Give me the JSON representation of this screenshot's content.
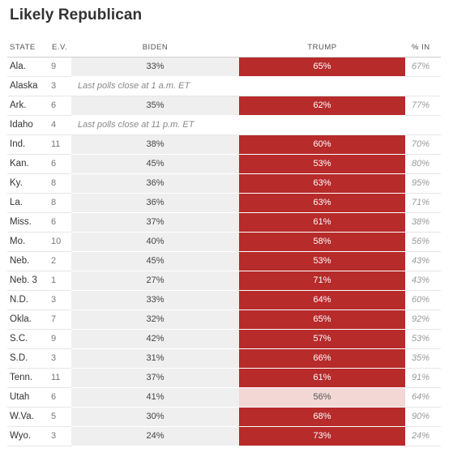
{
  "title": "Likely Republican",
  "headers": {
    "state": "STATE",
    "ev": "E.V.",
    "biden": "BIDEN",
    "trump": "TRUMP",
    "pct_in": "% IN"
  },
  "colors": {
    "trump": "#b72b2b",
    "trump_light": "#f2d7d5",
    "biden": "#efefef"
  },
  "rows": [
    {
      "state": "Ala.",
      "ev": "9",
      "biden": "33%",
      "trump": "65%",
      "pct_in": "67%"
    },
    {
      "state": "Alaska",
      "ev": "3",
      "note": "Last polls close at 1 a.m. ET"
    },
    {
      "state": "Ark.",
      "ev": "6",
      "biden": "35%",
      "trump": "62%",
      "pct_in": "77%"
    },
    {
      "state": "Idaho",
      "ev": "4",
      "note": "Last polls close at 11 p.m. ET"
    },
    {
      "state": "Ind.",
      "ev": "11",
      "biden": "38%",
      "trump": "60%",
      "pct_in": "70%"
    },
    {
      "state": "Kan.",
      "ev": "6",
      "biden": "45%",
      "trump": "53%",
      "pct_in": "80%"
    },
    {
      "state": "Ky.",
      "ev": "8",
      "biden": "36%",
      "trump": "63%",
      "pct_in": "95%"
    },
    {
      "state": "La.",
      "ev": "8",
      "biden": "36%",
      "trump": "63%",
      "pct_in": "71%"
    },
    {
      "state": "Miss.",
      "ev": "6",
      "biden": "37%",
      "trump": "61%",
      "pct_in": "38%"
    },
    {
      "state": "Mo.",
      "ev": "10",
      "biden": "40%",
      "trump": "58%",
      "pct_in": "56%"
    },
    {
      "state": "Neb.",
      "ev": "2",
      "biden": "45%",
      "trump": "53%",
      "pct_in": "43%"
    },
    {
      "state": "Neb. 3",
      "ev": "1",
      "biden": "27%",
      "trump": "71%",
      "pct_in": "43%"
    },
    {
      "state": "N.D.",
      "ev": "3",
      "biden": "33%",
      "trump": "64%",
      "pct_in": "60%"
    },
    {
      "state": "Okla.",
      "ev": "7",
      "biden": "32%",
      "trump": "65%",
      "pct_in": "92%"
    },
    {
      "state": "S.C.",
      "ev": "9",
      "biden": "42%",
      "trump": "57%",
      "pct_in": "53%"
    },
    {
      "state": "S.D.",
      "ev": "3",
      "biden": "31%",
      "trump": "66%",
      "pct_in": "35%"
    },
    {
      "state": "Tenn.",
      "ev": "11",
      "biden": "37%",
      "trump": "61%",
      "pct_in": "91%"
    },
    {
      "state": "Utah",
      "ev": "6",
      "biden": "41%",
      "trump": "56%",
      "pct_in": "64%",
      "lean": true
    },
    {
      "state": "W.Va.",
      "ev": "5",
      "biden": "30%",
      "trump": "68%",
      "pct_in": "90%"
    },
    {
      "state": "Wyo.",
      "ev": "3",
      "biden": "24%",
      "trump": "73%",
      "pct_in": "24%"
    }
  ]
}
